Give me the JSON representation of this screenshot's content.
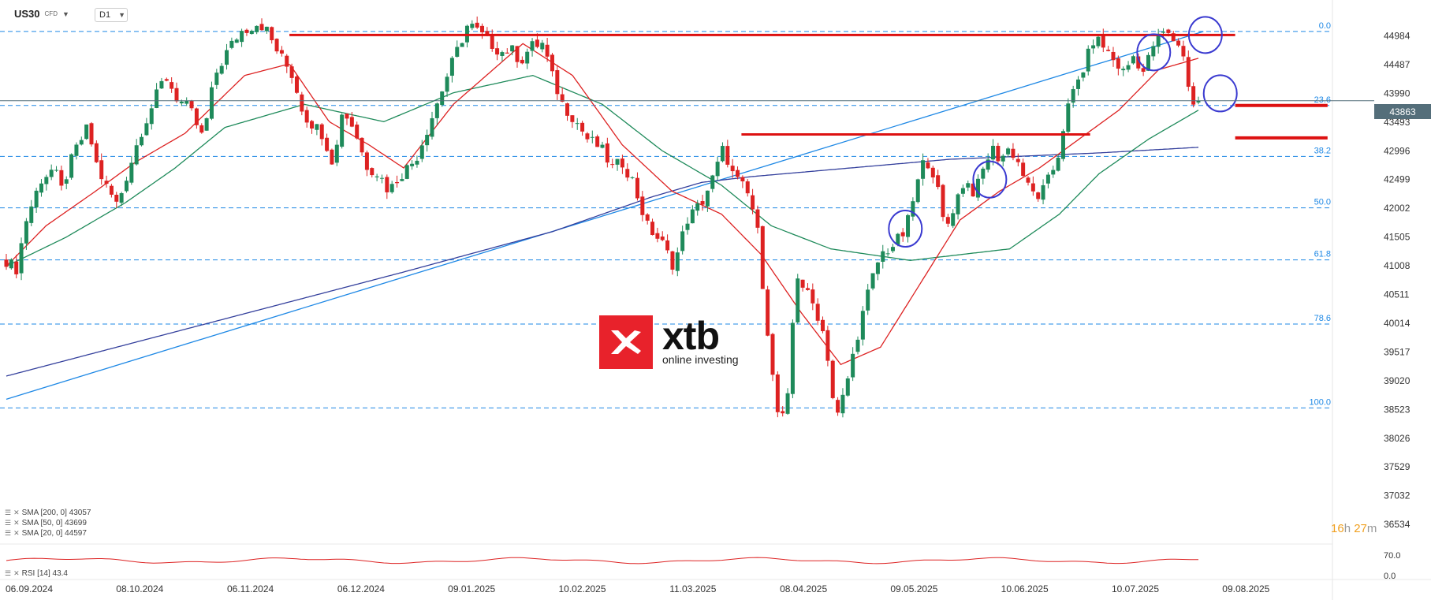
{
  "header": {
    "symbol": "US30",
    "symbol_suffix": "CFD",
    "timeframe": "D1"
  },
  "chart_data": {
    "type": "candlestick",
    "x_labels": [
      "06.09.2024",
      "08.10.2024",
      "06.11.2024",
      "06.12.2024",
      "09.01.2025",
      "10.02.2025",
      "11.03.2025",
      "08.04.2025",
      "09.05.2025",
      "10.06.2025",
      "10.07.2025",
      "09.08.2025"
    ],
    "y_ticks": [
      "44984",
      "44487",
      "43990",
      "43493",
      "42996",
      "42499",
      "42002",
      "41505",
      "41008",
      "40511",
      "40014",
      "39517",
      "39020",
      "38523",
      "38026",
      "37529",
      "37032",
      "36534"
    ],
    "ylim": [
      36400,
      45400
    ],
    "current_price": 43863,
    "current_price_label": "43863",
    "close_path": [
      [
        0,
        41100
      ],
      [
        10,
        40950
      ],
      [
        20,
        41800
      ],
      [
        35,
        42500
      ],
      [
        48,
        42700
      ],
      [
        55,
        42300
      ],
      [
        68,
        42950
      ],
      [
        82,
        43400
      ],
      [
        90,
        42800
      ],
      [
        98,
        42450
      ],
      [
        112,
        42050
      ],
      [
        118,
        42400
      ],
      [
        135,
        43300
      ],
      [
        160,
        44300
      ],
      [
        172,
        43900
      ],
      [
        185,
        43700
      ],
      [
        198,
        43200
      ],
      [
        210,
        44300
      ],
      [
        222,
        44700
      ],
      [
        235,
        45050
      ],
      [
        252,
        45200
      ],
      [
        260,
        45150
      ],
      [
        270,
        44800
      ],
      [
        288,
        44300
      ],
      [
        300,
        43600
      ],
      [
        318,
        43300
      ],
      [
        330,
        42750
      ],
      [
        338,
        43700
      ],
      [
        350,
        43400
      ],
      [
        362,
        42750
      ],
      [
        375,
        42600
      ],
      [
        385,
        42300
      ],
      [
        395,
        42550
      ],
      [
        412,
        42850
      ],
      [
        430,
        43650
      ],
      [
        445,
        44350
      ],
      [
        465,
        45200
      ],
      [
        475,
        45050
      ],
      [
        485,
        44900
      ],
      [
        498,
        44700
      ],
      [
        508,
        44750
      ],
      [
        518,
        44550
      ],
      [
        528,
        44800
      ],
      [
        540,
        44850
      ],
      [
        550,
        44250
      ],
      [
        560,
        43800
      ],
      [
        572,
        43550
      ],
      [
        585,
        43200
      ],
      [
        598,
        43050
      ],
      [
        610,
        42700
      ],
      [
        620,
        42800
      ],
      [
        630,
        42500
      ],
      [
        645,
        41700
      ],
      [
        660,
        41400
      ],
      [
        672,
        41000
      ],
      [
        685,
        41800
      ],
      [
        700,
        42100
      ],
      [
        712,
        42550
      ],
      [
        722,
        43050
      ],
      [
        732,
        42550
      ],
      [
        745,
        42300
      ],
      [
        755,
        41800
      ],
      [
        762,
        40600
      ],
      [
        775,
        38500
      ],
      [
        785,
        38300
      ],
      [
        795,
        40900
      ],
      [
        805,
        40550
      ],
      [
        815,
        40250
      ],
      [
        825,
        39700
      ],
      [
        835,
        38300
      ],
      [
        845,
        38900
      ],
      [
        858,
        39900
      ],
      [
        870,
        40700
      ],
      [
        880,
        41200
      ],
      [
        892,
        41350
      ],
      [
        905,
        41600
      ],
      [
        915,
        42300
      ],
      [
        925,
        42900
      ],
      [
        935,
        42550
      ],
      [
        945,
        41600
      ],
      [
        955,
        42100
      ],
      [
        965,
        42500
      ],
      [
        975,
        42250
      ],
      [
        985,
        42750
      ],
      [
        992,
        43050
      ],
      [
        1000,
        42850
      ],
      [
        1010,
        43050
      ],
      [
        1020,
        42750
      ],
      [
        1030,
        42300
      ],
      [
        1040,
        42200
      ],
      [
        1048,
        42450
      ],
      [
        1058,
        42850
      ],
      [
        1066,
        43600
      ],
      [
        1075,
        44050
      ],
      [
        1085,
        44450
      ],
      [
        1095,
        44950
      ],
      [
        1105,
        44800
      ],
      [
        1115,
        44550
      ],
      [
        1125,
        44350
      ],
      [
        1135,
        44650
      ],
      [
        1145,
        44350
      ],
      [
        1155,
        44850
      ],
      [
        1165,
        45050
      ],
      [
        1172,
        44950
      ],
      [
        1180,
        44850
      ],
      [
        1188,
        44450
      ],
      [
        1192,
        43850
      ],
      [
        1198,
        43780
      ],
      [
        1200,
        43863
      ]
    ],
    "sma": [
      {
        "name": "SMA [200, 0] 43057",
        "color": "#333f9c",
        "last": 43057,
        "points": [
          [
            0,
            39100
          ],
          [
            200,
            40000
          ],
          [
            400,
            40900
          ],
          [
            550,
            41600
          ],
          [
            650,
            42200
          ],
          [
            700,
            42450
          ],
          [
            750,
            42550
          ],
          [
            850,
            42700
          ],
          [
            950,
            42850
          ],
          [
            1100,
            42960
          ],
          [
            1200,
            43057
          ]
        ]
      },
      {
        "name": "SMA [50, 0] 43699",
        "color": "#1e8a5a",
        "last": 43699,
        "points": [
          [
            0,
            41000
          ],
          [
            60,
            41500
          ],
          [
            120,
            42100
          ],
          [
            170,
            42700
          ],
          [
            220,
            43400
          ],
          [
            300,
            43800
          ],
          [
            380,
            43500
          ],
          [
            450,
            44000
          ],
          [
            530,
            44300
          ],
          [
            600,
            43800
          ],
          [
            660,
            43000
          ],
          [
            720,
            42400
          ],
          [
            770,
            41700
          ],
          [
            830,
            41300
          ],
          [
            870,
            41200
          ],
          [
            910,
            41100
          ],
          [
            960,
            41200
          ],
          [
            1010,
            41300
          ],
          [
            1060,
            41900
          ],
          [
            1100,
            42600
          ],
          [
            1150,
            43200
          ],
          [
            1200,
            43699
          ]
        ]
      },
      {
        "name": "SMA [20, 0] 44597",
        "color": "#dd2222",
        "last": 44597,
        "points": [
          [
            0,
            41000
          ],
          [
            40,
            41700
          ],
          [
            90,
            42300
          ],
          [
            130,
            42800
          ],
          [
            180,
            43300
          ],
          [
            240,
            44300
          ],
          [
            285,
            44500
          ],
          [
            325,
            43500
          ],
          [
            365,
            43100
          ],
          [
            400,
            42700
          ],
          [
            450,
            43800
          ],
          [
            520,
            44850
          ],
          [
            570,
            44300
          ],
          [
            620,
            43100
          ],
          [
            670,
            42300
          ],
          [
            720,
            41900
          ],
          [
            760,
            41200
          ],
          [
            800,
            40200
          ],
          [
            840,
            39300
          ],
          [
            880,
            39600
          ],
          [
            920,
            40700
          ],
          [
            960,
            41800
          ],
          [
            1000,
            42300
          ],
          [
            1040,
            42700
          ],
          [
            1080,
            43200
          ],
          [
            1120,
            43700
          ],
          [
            1160,
            44400
          ],
          [
            1200,
            44597
          ]
        ]
      }
    ],
    "fib_levels": [
      {
        "label": "0.0",
        "price": 45060
      },
      {
        "label": "23.6",
        "price": 43780
      },
      {
        "label": "38.2",
        "price": 42900
      },
      {
        "label": "50.0",
        "price": 42010
      },
      {
        "label": "61.8",
        "price": 41110
      },
      {
        "label": "78.6",
        "price": 40000
      },
      {
        "label": "100.0",
        "price": 38550
      }
    ],
    "trend_line": {
      "from": [
        0,
        38700
      ],
      "to": [
        1205,
        45060
      ],
      "color": "#1e88e5"
    },
    "resistance_lines": [
      {
        "from": [
          285,
          45000
        ],
        "to": [
          1237,
          45000
        ],
        "color": "#dd1111"
      },
      {
        "from": [
          740,
          43280
        ],
        "to": [
          1091,
          43280
        ],
        "color": "#dd1111"
      }
    ],
    "target_lines": [
      {
        "from": [
          1237,
          43780
        ],
        "to": [
          1330,
          43780
        ]
      },
      {
        "from": [
          1237,
          43220
        ],
        "to": [
          1330,
          43220
        ]
      }
    ],
    "circles": [
      {
        "x": 905,
        "price": 41650
      },
      {
        "x": 990,
        "price": 42500
      },
      {
        "x": 1155,
        "price": 44700
      },
      {
        "x": 1207,
        "price": 45000
      },
      {
        "x": 1222,
        "price": 43990
      }
    ],
    "rsi": {
      "name": "RSI [14] 43.4",
      "last": 43.4,
      "ticks": [
        "70.0",
        "0.0"
      ]
    }
  },
  "legend": [
    "SMA [200, 0] 43057",
    "SMA [50, 0] 43699",
    "SMA [20, 0] 44597"
  ],
  "rsi_label": "RSI [14] 43.4",
  "timer": {
    "hours": "16",
    "h_unit": "h",
    "minutes": "27",
    "m_unit": "m"
  },
  "logo": {
    "word": "xtb",
    "tagline": "online investing"
  },
  "colors": {
    "up": "#1e8a5a",
    "down": "#dd2222",
    "fib": "#1e88e5",
    "axis_text": "#333333"
  }
}
